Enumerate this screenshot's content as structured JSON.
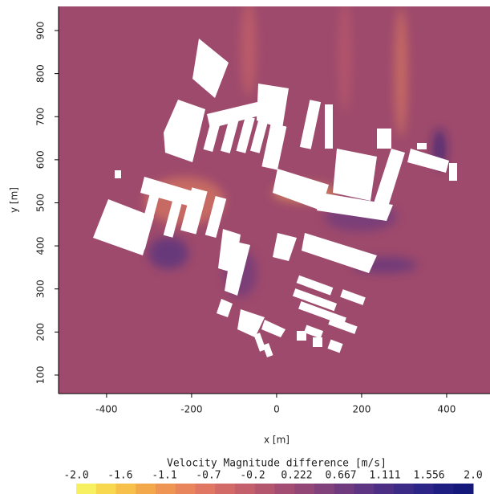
{
  "chart_data": {
    "type": "field",
    "xlabel": "x [m]",
    "ylabel": "y [m]",
    "xlim": [
      -513,
      502
    ],
    "ylim": [
      57,
      956
    ],
    "xticks": [
      -400,
      -200,
      0,
      200,
      400
    ],
    "yticks": [
      100,
      200,
      300,
      400,
      500,
      600,
      700,
      800,
      900
    ],
    "background_color": "#9e4a6c",
    "colorbar": {
      "title": "Velocity Magnitude difference [m/s]",
      "lim": [
        -2,
        2
      ],
      "ticks": [
        {
          "value": -2,
          "label": "-2.0"
        },
        {
          "value": -1.556,
          "label": "-1.6"
        },
        {
          "value": -1.111,
          "label": "-1.1"
        },
        {
          "value": -0.667,
          "label": "-0.7"
        },
        {
          "value": -0.222,
          "label": "-0.2"
        },
        0.222,
        0.667,
        1.111,
        1.556,
        {
          "value": 2,
          "label": "2.0"
        }
      ],
      "colors": [
        "#f7f060",
        "#f8d84e",
        "#f6c04a",
        "#f3a84c",
        "#ee9554",
        "#e8855c",
        "#df7762",
        "#d26a68",
        "#c45f6c",
        "#b5566f",
        "#a44d72",
        "#934776",
        "#81417a",
        "#6f3b7e",
        "#5d3582",
        "#4c2f84",
        "#3b2a86",
        "#2c2486",
        "#1e1e82",
        "#14187a"
      ]
    }
  }
}
